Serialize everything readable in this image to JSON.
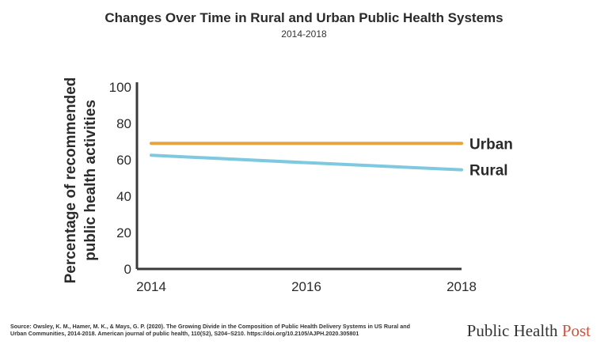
{
  "chart_data": {
    "type": "line",
    "title": "Changes Over Time in Rural and Urban Public Health Systems",
    "subtitle": "2014-2018",
    "ylabel_line1": "Percentage of recommended",
    "ylabel_line2": "public health activities",
    "xlabel": "",
    "x": [
      2014,
      2016,
      2018
    ],
    "xticks": [
      "2014",
      "2016",
      "2018"
    ],
    "yticks": [
      "0",
      "20",
      "40",
      "60",
      "80",
      "100"
    ],
    "ylim": [
      0,
      100
    ],
    "xlim": [
      2014,
      2018
    ],
    "series": [
      {
        "name": "Urban",
        "values": [
          69,
          69,
          69
        ],
        "color": "#e8a33d"
      },
      {
        "name": "Rural",
        "values": [
          62.5,
          58.4,
          54.5
        ],
        "color": "#7ec8e0"
      }
    ],
    "grid": false
  },
  "footer": {
    "source": "Source: Owsley, K. M., Hamer, M. K., & Mays, G. P. (2020). The Growing Divide in the Composition of Public Health Delivery Systems in US Rural and Urban Communities, 2014-2018. American journal of public health, 110(S2), S204–S210. https://doi.org/10.2105/AJPH.2020.305801",
    "logo_main": "Public Health ",
    "logo_accent": "Post"
  }
}
